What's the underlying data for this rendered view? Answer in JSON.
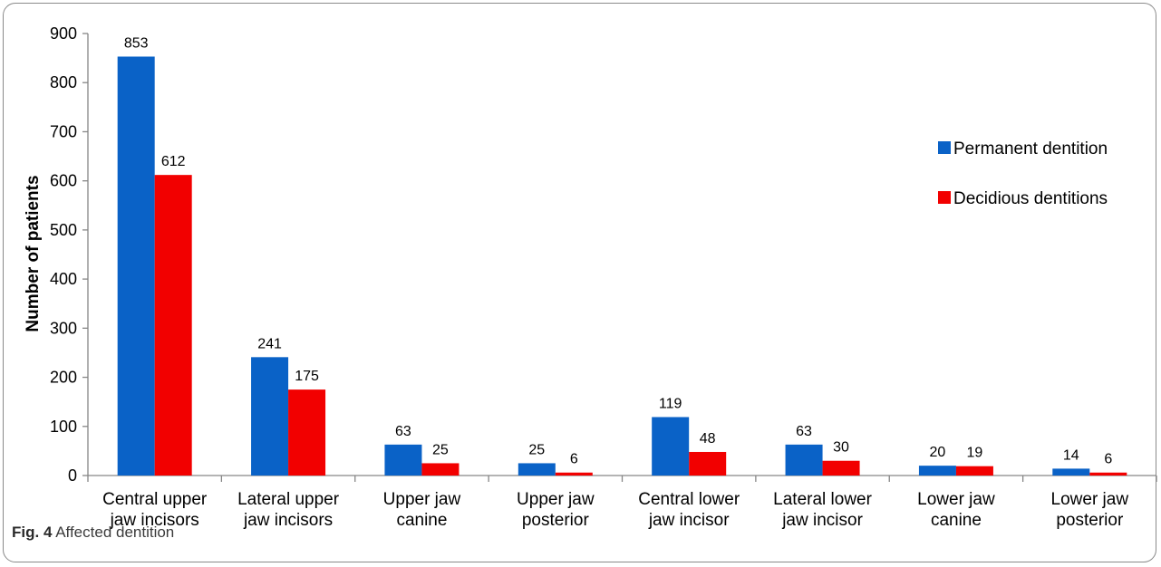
{
  "caption": {
    "label": "Fig. 4",
    "text": "Affected dentition"
  },
  "chart_data": {
    "type": "bar",
    "ylabel": "Number of patients",
    "xlabel": "",
    "ylim": [
      0,
      900
    ],
    "yticks": [
      0,
      100,
      200,
      300,
      400,
      500,
      600,
      700,
      800,
      900
    ],
    "grid": false,
    "legend_position": "right",
    "categories": [
      [
        "Central upper",
        "jaw incisors"
      ],
      [
        "Lateral upper",
        "jaw incisors"
      ],
      [
        "Upper jaw",
        "canine"
      ],
      [
        "Upper jaw",
        "posterior"
      ],
      [
        "Central lower",
        "jaw incisor"
      ],
      [
        "Lateral lower",
        "jaw incisor"
      ],
      [
        "Lower jaw",
        "canine"
      ],
      [
        "Lower jaw",
        "posterior"
      ]
    ],
    "series": [
      {
        "name": "Permanent dentition",
        "color": "#0a62c7",
        "values": [
          853,
          241,
          63,
          25,
          119,
          63,
          20,
          14
        ]
      },
      {
        "name": "Decidious dentitions",
        "color": "#f20000",
        "values": [
          612,
          175,
          25,
          6,
          48,
          30,
          19,
          6
        ]
      }
    ]
  }
}
